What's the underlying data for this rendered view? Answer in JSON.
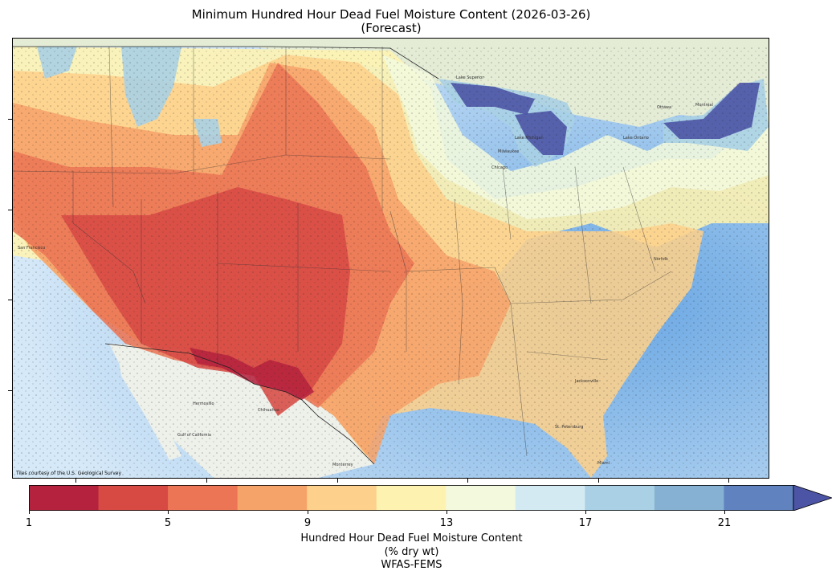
{
  "title": {
    "line1": "Minimum Hundred Hour Dead Fuel Moisture Content (2026-03-26)",
    "line2": "(Forecast)"
  },
  "map": {
    "attribution": "Tiles courtesy of the U.S. Geological Survey",
    "basemap_ocean": "#cfe3f4",
    "basemap_land": "#ecefe4",
    "labels": {
      "san_francisco": "San Francisco",
      "hermosillo": "Hermosillo",
      "chihuahua": "Chihuahua",
      "monterrey": "Monterrey",
      "gulf_of_california": "Gulf of California",
      "jacksonville": "Jacksonville",
      "miami": "Miami",
      "st_petersburg": "St. Petersburg",
      "norfolk": "Norfolk",
      "lake_superior": "Lake Superior",
      "lake_michigan": "Lake Michigan",
      "lake_ontario": "Lake Ontario",
      "milwaukee": "Milwaukee",
      "chicago": "Chicago",
      "ottawa": "Ottawa",
      "montreal": "Montréal"
    }
  },
  "colorbar": {
    "tick_labels": [
      "1",
      "5",
      "9",
      "13",
      "17",
      "21"
    ],
    "label_line1": "Hundred Hour Dead Fuel Moisture Content",
    "label_line2": "(% dry wt)",
    "label_line3": "WFAS-FEMS",
    "bins": [
      1,
      3,
      5,
      7,
      9,
      11,
      13,
      15,
      17,
      19,
      21,
      23
    ],
    "extend": "max",
    "colors": [
      "#b5223d",
      "#d74a44",
      "#ec7555",
      "#f6a36a",
      "#fdd08b",
      "#fef2b0",
      "#f2f9dd",
      "#d4eaf2",
      "#a9d0e4",
      "#86b1d3",
      "#6082be",
      "#4c54a5"
    ]
  }
}
